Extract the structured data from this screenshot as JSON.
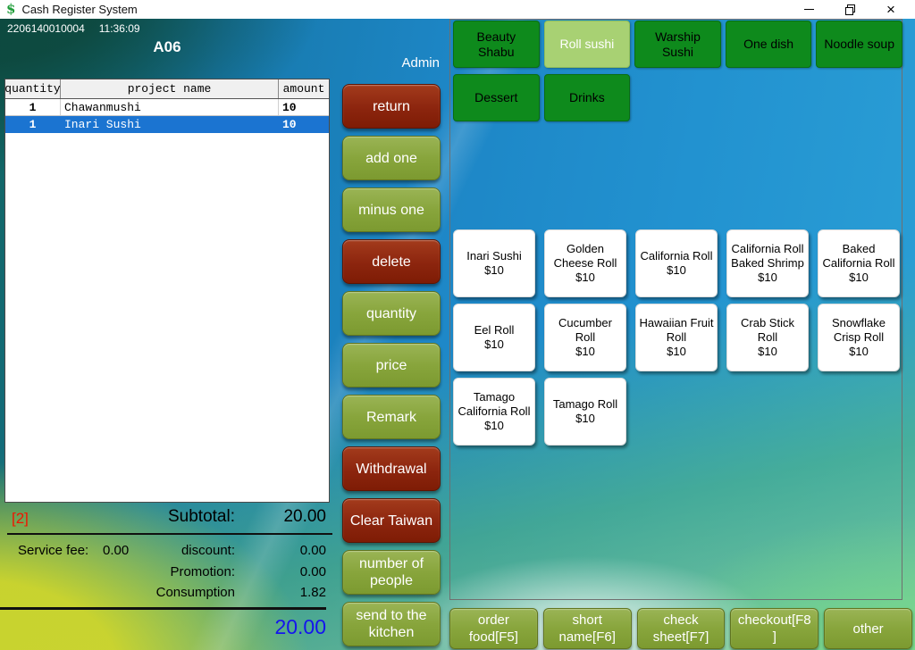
{
  "window": {
    "title": "Cash Register System",
    "icons": {
      "app": "$",
      "minimize": "minus-line",
      "restore": "overlapping-squares",
      "close": "×"
    }
  },
  "header": {
    "order_no": "2206140010004",
    "time": "11:36:09",
    "table_name": "A06",
    "user": "Admin"
  },
  "order_table": {
    "columns": [
      "quantity",
      "project name",
      "amount"
    ],
    "rows": [
      {
        "quantity": "1",
        "name": "Chawanmushi",
        "amount": "10",
        "selected": false
      },
      {
        "quantity": "1",
        "name": "Inari Sushi",
        "amount": "10",
        "selected": true
      }
    ]
  },
  "actions": [
    {
      "label": "return",
      "variant": "red"
    },
    {
      "label": "add one",
      "variant": "green"
    },
    {
      "label": "minus one",
      "variant": "green"
    },
    {
      "label": "delete",
      "variant": "red"
    },
    {
      "label": "quantity",
      "variant": "green"
    },
    {
      "label": "price",
      "variant": "green"
    },
    {
      "label": "Remark",
      "variant": "green"
    },
    {
      "label": "Withdrawal",
      "variant": "red"
    },
    {
      "label": "Clear Taiwan",
      "variant": "red"
    },
    {
      "label": "number of people",
      "variant": "green"
    },
    {
      "label": "send to the kitchen",
      "variant": "green"
    }
  ],
  "categories": [
    {
      "label": "Beauty\nShabu",
      "selected": false
    },
    {
      "label": "Roll sushi",
      "selected": true
    },
    {
      "label": "Warship\nSushi",
      "selected": false
    },
    {
      "label": "One dish",
      "selected": false
    },
    {
      "label": "Noodle soup",
      "selected": false
    },
    {
      "label": "Dessert",
      "selected": false
    },
    {
      "label": "Drinks",
      "selected": false
    }
  ],
  "products": [
    {
      "name": "Inari Sushi",
      "price": "$10"
    },
    {
      "name": "Golden Cheese Roll",
      "price": "$10"
    },
    {
      "name": "California Roll",
      "price": "$10"
    },
    {
      "name": "California Roll Baked Shrimp",
      "price": "$10"
    },
    {
      "name": "Baked California Roll",
      "price": "$10"
    },
    {
      "name": "Eel Roll",
      "price": "$10"
    },
    {
      "name": "Cucumber Roll",
      "price": "$10"
    },
    {
      "name": "Hawaiian Fruit Roll",
      "price": "$10"
    },
    {
      "name": "Crab Stick Roll",
      "price": "$10"
    },
    {
      "name": "Snowflake Crisp Roll",
      "price": "$10"
    },
    {
      "name": "Tamago California Roll",
      "price": "$10"
    },
    {
      "name": "Tamago Roll",
      "price": "$10"
    }
  ],
  "bottom_actions": [
    {
      "label": "order food[F5]"
    },
    {
      "label": "short name[F6]"
    },
    {
      "label": "check sheet[F7]"
    },
    {
      "label": "checkout[F8 ]"
    },
    {
      "label": "other"
    }
  ],
  "summary": {
    "count": "[2]",
    "subtotal_label": "Subtotal:",
    "subtotal": "20.00",
    "service_fee_label": "Service fee:",
    "service_fee": "0.00",
    "discount_label": "discount:",
    "discount": "0.00",
    "promotion_label": "Promotion:",
    "promotion": "0.00",
    "consumption_label": "Consumption",
    "consumption": "1.82",
    "total": "20.00"
  },
  "colors": {
    "category_green": "#0e8a1c",
    "category_selected_green": "#a8d173",
    "action_olive": "#88a53c",
    "action_red": "#8c250e",
    "selected_row_blue": "#1b74d1",
    "count_red": "#f01500",
    "total_blue": "#1414ee"
  }
}
